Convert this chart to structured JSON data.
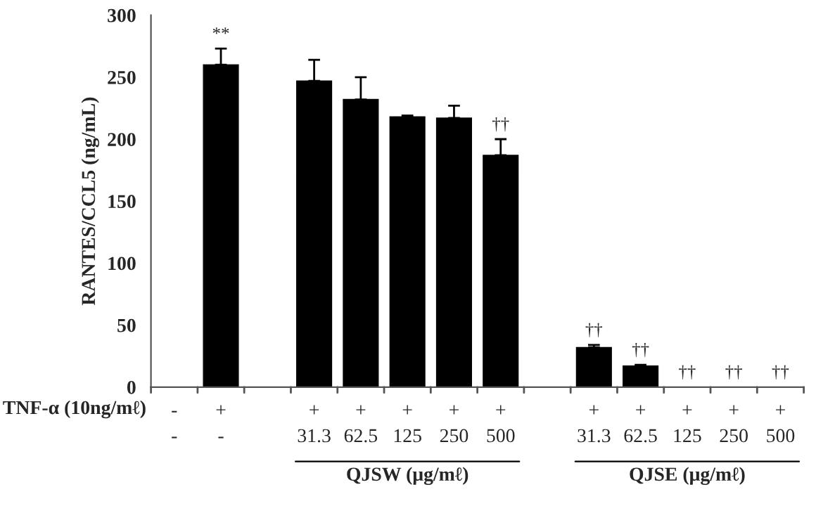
{
  "chart_data": {
    "type": "bar",
    "ylabel": "RANTES/CCL5 (ng/mL)",
    "categories": [
      "-\n-",
      "+\n-",
      null,
      "+\n31.3",
      "+\n62.5",
      "+\n125",
      "+\n250",
      "+\n500",
      null,
      "+\n31.3",
      "+\n62.5",
      "+\n125",
      "+\n250",
      "+\n500"
    ],
    "values": [
      null,
      260,
      null,
      247,
      232,
      218,
      217,
      187,
      null,
      32,
      17,
      0,
      0,
      0
    ],
    "errors": [
      null,
      [
        260,
        273
      ],
      null,
      [
        247,
        264
      ],
      [
        232,
        250
      ],
      [
        218,
        219
      ],
      [
        217,
        227
      ],
      [
        187,
        200
      ],
      null,
      [
        32,
        34
      ],
      [
        17,
        18
      ],
      null,
      null,
      null
    ],
    "color": "#000000",
    "ylim": [
      0,
      300
    ],
    "yticks": [
      0,
      50,
      100,
      150,
      200,
      250,
      300
    ],
    "grid": false,
    "legend": false,
    "annotations": [
      {
        "text": "**",
        "x": "+\n-",
        "y": 273
      },
      {
        "text": "††",
        "x": "+\n500",
        "y": 200
      },
      "TNF-α (10ng/mℓ)",
      "QJSW (μg/mℓ)",
      "QJSE (μg/mℓ)",
      "††",
      "††",
      "††",
      "††",
      "††"
    ]
  }
}
